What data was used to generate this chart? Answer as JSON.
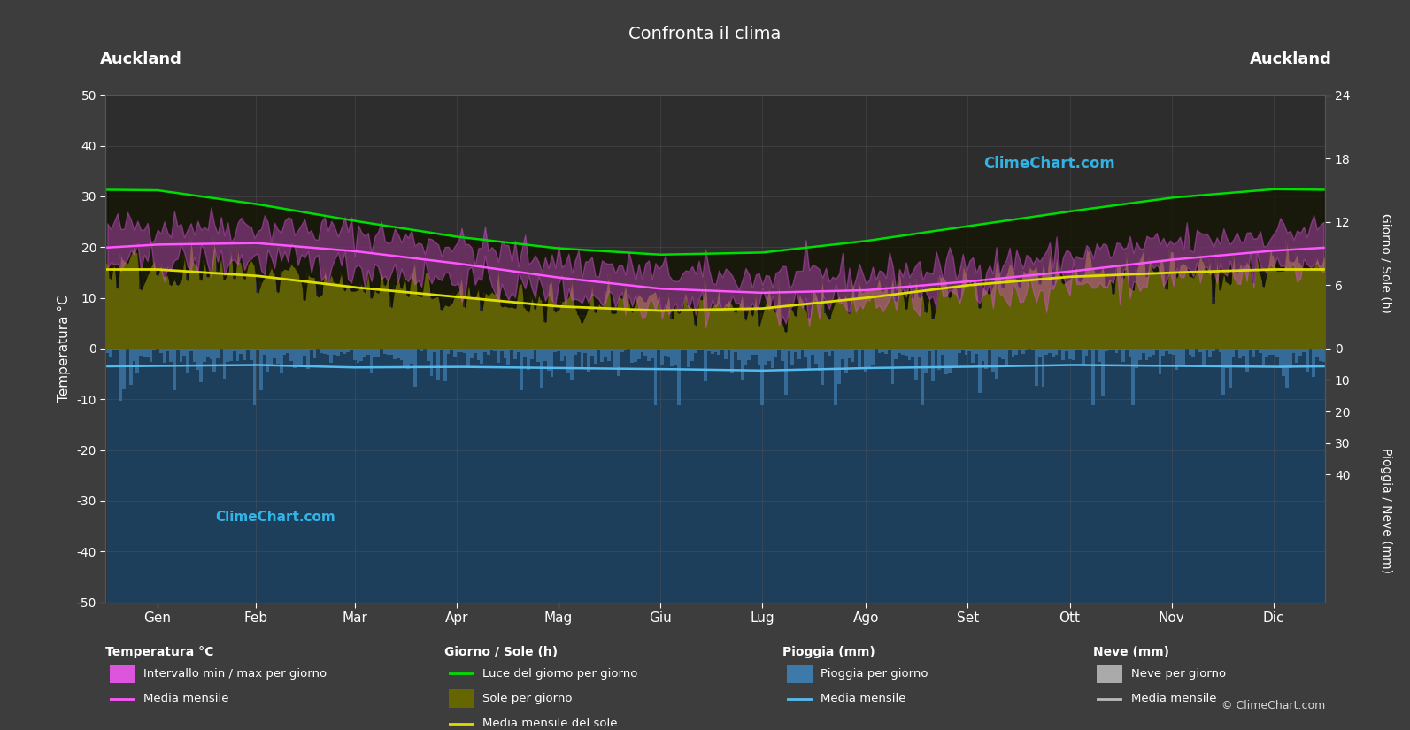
{
  "title": "Confronta il clima",
  "location_left": "Auckland",
  "location_right": "Auckland",
  "bg_color": "#3d3d3d",
  "plot_bg_color": "#2d2d2d",
  "text_color": "#ffffff",
  "grid_color": "#555555",
  "months": [
    "Gen",
    "Feb",
    "Mar",
    "Apr",
    "Mag",
    "Giu",
    "Lug",
    "Ago",
    "Set",
    "Ott",
    "Nov",
    "Dic"
  ],
  "temp_ylim": [
    -50,
    50
  ],
  "temp_yticks": [
    -50,
    -40,
    -30,
    -20,
    -10,
    0,
    10,
    20,
    30,
    40,
    50
  ],
  "ylabel_left": "Temperatura °C",
  "ylabel_right_top": "Giorno / Sole (h)",
  "ylabel_right_bottom": "Pioggia / Neve (mm)",
  "temp_max": [
    24.5,
    24.5,
    23.0,
    20.5,
    17.5,
    15.0,
    14.2,
    14.8,
    16.5,
    18.5,
    20.8,
    23.0
  ],
  "temp_min": [
    17.0,
    17.5,
    16.0,
    13.5,
    11.0,
    9.0,
    8.2,
    8.8,
    10.5,
    12.5,
    14.5,
    16.0
  ],
  "temp_mean": [
    20.5,
    20.8,
    19.2,
    16.8,
    14.0,
    11.8,
    11.0,
    11.5,
    13.2,
    15.2,
    17.5,
    19.3
  ],
  "daylight": [
    15.0,
    13.7,
    12.1,
    10.6,
    9.5,
    8.9,
    9.1,
    10.2,
    11.6,
    13.0,
    14.3,
    15.1
  ],
  "sunshine": [
    7.8,
    7.2,
    6.0,
    5.2,
    4.2,
    3.8,
    4.0,
    5.0,
    6.2,
    7.0,
    7.5,
    7.8
  ],
  "sunshine_mean": [
    7.5,
    6.9,
    5.8,
    4.9,
    4.0,
    3.6,
    3.8,
    4.8,
    6.0,
    6.8,
    7.2,
    7.5
  ],
  "rain_daily_mean": [
    3.8,
    3.5,
    4.0,
    3.8,
    4.2,
    4.5,
    4.8,
    4.2,
    3.8,
    3.5,
    3.8,
    4.0
  ],
  "rain_monthly_mean": [
    5.5,
    5.2,
    6.0,
    5.8,
    6.2,
    6.5,
    7.0,
    6.2,
    5.8,
    5.2,
    5.5,
    5.8
  ],
  "sun_scale": 2.08,
  "rain_scale": 0.62,
  "color_temp_band": "#dd55dd",
  "color_olive_dark": "#666600",
  "color_olive_light": "#aaaa00",
  "color_daylight_line": "#00dd00",
  "color_sunshine_mean_line": "#dddd00",
  "color_temp_mean": "#ff55ff",
  "color_rain_bar": "#3d7aaa",
  "color_rain_mean_line": "#55bbee",
  "color_rain_bg": "#1e3f5c",
  "watermark_color": "#33bbee",
  "copyright": "© ClimeChart.com"
}
